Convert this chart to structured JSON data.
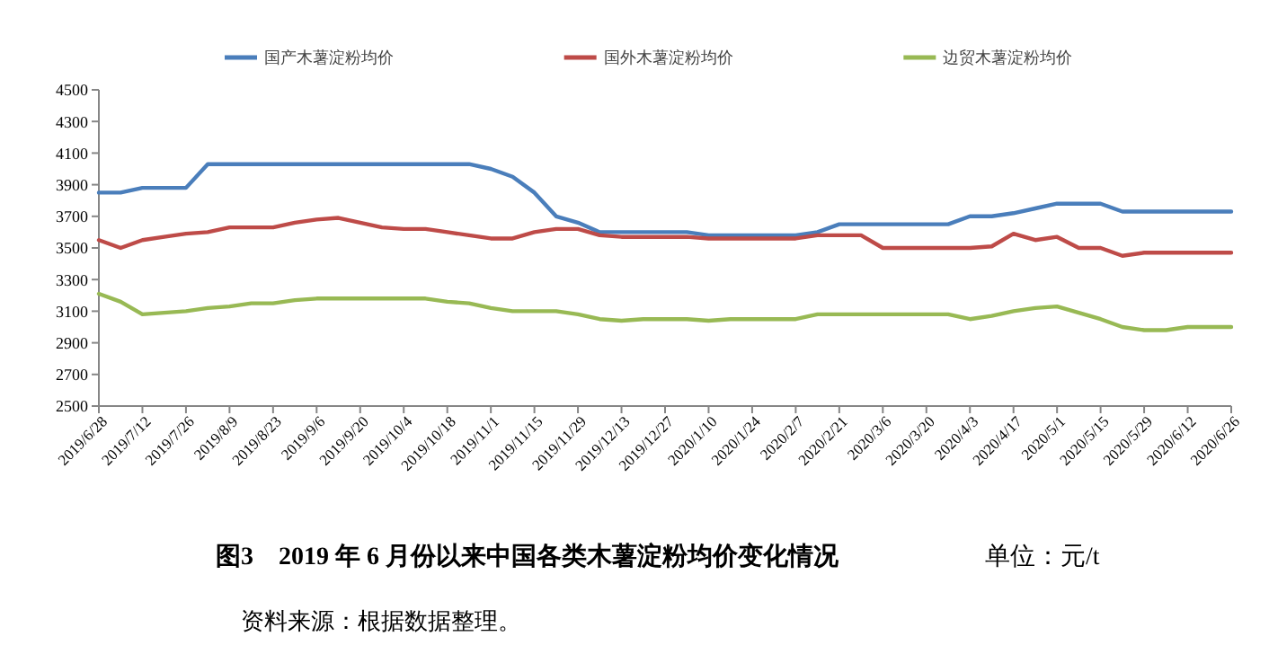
{
  "chart_data": {
    "type": "line",
    "title": "图3　2019 年 6 月份以来中国各类木薯淀粉均价变化情况",
    "subtitle": "单位：元/t",
    "annotations": [
      "资料来源：根据数据整理。"
    ],
    "x": [
      "2019-06-28",
      "2019-07-05",
      "2019-07-12",
      "2019-07-19",
      "2019-07-26",
      "2019-08-02",
      "2019-08-09",
      "2019-08-16",
      "2019-08-23",
      "2019-08-30",
      "2019-09-06",
      "2019-09-13",
      "2019-09-20",
      "2019-09-27",
      "2019-10-04",
      "2019-10-11",
      "2019-10-18",
      "2019-10-25",
      "2019-11-01",
      "2019-11-08",
      "2019-11-15",
      "2019-11-22",
      "2019-11-29",
      "2019-12-06",
      "2019-12-13",
      "2019-12-20",
      "2019-12-27",
      "2020-01-03",
      "2020-01-10",
      "2020-01-17",
      "2020-01-24",
      "2020-01-31",
      "2020-02-07",
      "2020-02-14",
      "2020-02-21",
      "2020-02-28",
      "2020-03-06",
      "2020-03-13",
      "2020-03-20",
      "2020-03-27",
      "2020-04-03",
      "2020-04-10",
      "2020-04-17",
      "2020-04-24",
      "2020-05-01",
      "2020-05-08",
      "2020-05-15",
      "2020-05-22",
      "2020-05-29",
      "2020-06-05",
      "2020-06-12",
      "2020-06-19",
      "2020-06-26"
    ],
    "xlim": [
      "2019-06-28",
      "2020-06-26"
    ],
    "xticks": [
      {
        "value": "2019-06-28",
        "label": "2019/6/28"
      },
      {
        "value": "2019-07-12",
        "label": "2019/7/12"
      },
      {
        "value": "2019-07-26",
        "label": "2019/7/26"
      },
      {
        "value": "2019-08-09",
        "label": "2019/8/9"
      },
      {
        "value": "2019-08-23",
        "label": "2019/8/23"
      },
      {
        "value": "2019-09-06",
        "label": "2019/9/6"
      },
      {
        "value": "2019-09-20",
        "label": "2019/9/20"
      },
      {
        "value": "2019-10-04",
        "label": "2019/10/4"
      },
      {
        "value": "2019-10-18",
        "label": "2019/10/18"
      },
      {
        "value": "2019-11-01",
        "label": "2019/11/1"
      },
      {
        "value": "2019-11-15",
        "label": "2019/11/15"
      },
      {
        "value": "2019-11-29",
        "label": "2019/11/29"
      },
      {
        "value": "2019-12-13",
        "label": "2019/12/13"
      },
      {
        "value": "2019-12-27",
        "label": "2019/12/27"
      },
      {
        "value": "2020-01-10",
        "label": "2020/1/10"
      },
      {
        "value": "2020-01-24",
        "label": "2020/1/24"
      },
      {
        "value": "2020-02-07",
        "label": "2020/2/7"
      },
      {
        "value": "2020-02-21",
        "label": "2020/2/21"
      },
      {
        "value": "2020-03-06",
        "label": "2020/3/6"
      },
      {
        "value": "2020-03-20",
        "label": "2020/3/20"
      },
      {
        "value": "2020-04-03",
        "label": "2020/4/3"
      },
      {
        "value": "2020-04-17",
        "label": "2020/4/17"
      },
      {
        "value": "2020-05-01",
        "label": "2020/5/1"
      },
      {
        "value": "2020-05-15",
        "label": "2020/5/15"
      },
      {
        "value": "2020-05-29",
        "label": "2020/5/29"
      },
      {
        "value": "2020-06-12",
        "label": "2020/6/12"
      },
      {
        "value": "2020-06-26",
        "label": "2020/6/26"
      }
    ],
    "ylim": [
      2500,
      4500
    ],
    "yticks": [
      2500,
      2700,
      2900,
      3100,
      3300,
      3500,
      3700,
      3900,
      4100,
      4300,
      4500
    ],
    "grid": false,
    "legend": "top",
    "marker": "none",
    "line_style": "solid",
    "series": [
      {
        "name": "国产木薯淀粉均价",
        "color": "#4a7ebb",
        "values": [
          3850,
          3850,
          3880,
          3880,
          3880,
          4030,
          4030,
          4030,
          4030,
          4030,
          4030,
          4030,
          4030,
          4030,
          4030,
          4030,
          4030,
          4030,
          4000,
          3950,
          3850,
          3700,
          3660,
          3600,
          3600,
          3600,
          3600,
          3600,
          3580,
          3580,
          3580,
          3580,
          3580,
          3600,
          3650,
          3650,
          3650,
          3650,
          3650,
          3650,
          3700,
          3700,
          3720,
          3750,
          3780,
          3780,
          3780,
          3730,
          3730,
          3730,
          3730,
          3730,
          3730
        ]
      },
      {
        "name": "国外木薯淀粉均价",
        "color": "#be4b48",
        "values": [
          3550,
          3500,
          3550,
          3570,
          3590,
          3600,
          3630,
          3630,
          3630,
          3660,
          3680,
          3690,
          3660,
          3630,
          3620,
          3620,
          3600,
          3580,
          3560,
          3560,
          3600,
          3620,
          3620,
          3580,
          3570,
          3570,
          3570,
          3570,
          3560,
          3560,
          3560,
          3560,
          3560,
          3580,
          3580,
          3580,
          3500,
          3500,
          3500,
          3500,
          3500,
          3510,
          3590,
          3550,
          3570,
          3500,
          3500,
          3450,
          3470,
          3470,
          3470,
          3470,
          3470
        ]
      },
      {
        "name": "边贸木薯淀粉均价",
        "color": "#98b954",
        "values": [
          3210,
          3160,
          3080,
          3090,
          3100,
          3120,
          3130,
          3150,
          3150,
          3170,
          3180,
          3180,
          3180,
          3180,
          3180,
          3180,
          3160,
          3150,
          3120,
          3100,
          3100,
          3100,
          3080,
          3050,
          3040,
          3050,
          3050,
          3050,
          3040,
          3050,
          3050,
          3050,
          3050,
          3080,
          3080,
          3080,
          3080,
          3080,
          3080,
          3080,
          3050,
          3070,
          3100,
          3120,
          3130,
          3090,
          3050,
          3000,
          2980,
          2980,
          3000,
          3000,
          3000
        ]
      }
    ]
  }
}
